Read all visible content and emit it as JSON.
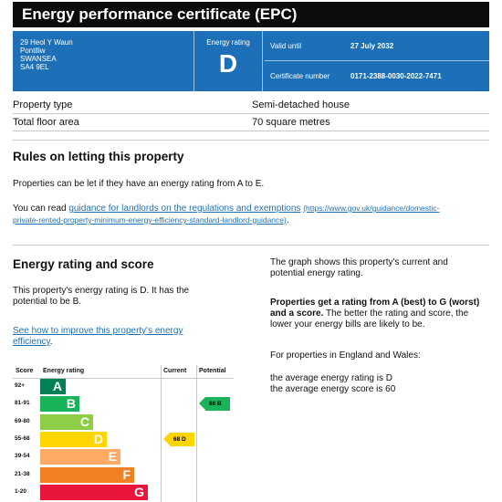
{
  "title": "Energy performance certificate (EPC)",
  "address": [
    "29 Heol Y Waun",
    "Pontlliw",
    "SWANSEA",
    "SA4 9EL"
  ],
  "energy_rating_label": "Energy rating",
  "energy_rating": "D",
  "valid_until_label": "Valid until",
  "valid_until": "27 July 2032",
  "certificate_number_label": "Certificate number",
  "certificate_number": "0171-2388-0030-2022-7471",
  "property_type_label": "Property type",
  "property_type": "Semi-detached house",
  "floor_area_label": "Total floor area",
  "floor_area": "70 square metres",
  "rules": {
    "heading": "Rules on letting this property",
    "p1": "Properties can be let if they have an energy rating from A to E.",
    "p2_prefix": "You can read ",
    "p2_link": "guidance for landlords on the regulations and exemptions",
    "p2_url_part1": "(https://www.gov.uk/guidance/domestic-",
    "p2_url_part2": "private-rented-property-minimum-energy-efficiency-standard-landlord-guidance)",
    "p2_suffix": "."
  },
  "score": {
    "heading": "Energy rating and score",
    "p1_line1": "This property's energy rating is D. It has the",
    "p1_line2": "potential to be B.",
    "link_line1": "See how to improve this property's energy",
    "link_line2": "efficiency",
    "link_suffix": ".",
    "r_p1_line1": "The graph shows this property's current and",
    "r_p1_line2": "potential energy rating.",
    "r_p2_bold1": "Properties get a rating from A (best) to G (worst)",
    "r_p2_bold2": "and a score.",
    "r_p2_rest1": " The better the rating and score, the",
    "r_p2_line3": "lower your energy bills are likely to be.",
    "r_p3": "For properties in England and Wales:",
    "r_p4_line1": "the average energy rating is D",
    "r_p4_line2": "the average energy score is 60"
  },
  "chart_data": {
    "type": "table",
    "headers": {
      "score": "Score",
      "rating": "Energy rating",
      "current": "Current",
      "potential": "Potential"
    },
    "bands": [
      {
        "range": "92+",
        "letter": "A",
        "color": "#008054"
      },
      {
        "range": "81-91",
        "letter": "B",
        "color": "#19b459"
      },
      {
        "range": "69-80",
        "letter": "C",
        "color": "#8dce46"
      },
      {
        "range": "55-68",
        "letter": "D",
        "color": "#ffd500"
      },
      {
        "range": "39-54",
        "letter": "E",
        "color": "#fcaa65"
      },
      {
        "range": "21-38",
        "letter": "F",
        "color": "#ef8023"
      },
      {
        "range": "1-20",
        "letter": "G",
        "color": "#e9153b"
      }
    ],
    "current": {
      "score": 68,
      "letter": "D",
      "label": "68 D",
      "color": "#ffd500"
    },
    "potential": {
      "score": 86,
      "letter": "B",
      "label": "86 B",
      "color": "#19b459"
    }
  }
}
